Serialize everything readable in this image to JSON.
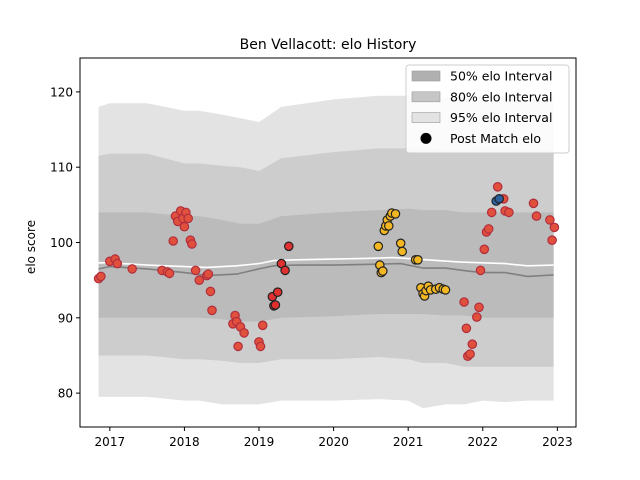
{
  "chart_data": {
    "type": "scatter",
    "title": "Ben Vellacott: elo History",
    "xlabel": "",
    "ylabel": "elo score",
    "xlim": [
      2016.6,
      2023.25
    ],
    "ylim": [
      75.5,
      124.5
    ],
    "x_ticks": [
      2017,
      2018,
      2019,
      2020,
      2021,
      2022,
      2023
    ],
    "y_ticks": [
      80,
      90,
      100,
      110,
      120
    ],
    "grid": false,
    "legend_position": "top-right",
    "legend": [
      {
        "label": "50% elo Interval",
        "kind": "band",
        "color": "#b0b0b0"
      },
      {
        "label": "80% elo Interval",
        "kind": "band",
        "color": "#c6c6c6"
      },
      {
        "label": "95% elo Interval",
        "kind": "band",
        "color": "#e3e3e3"
      },
      {
        "label": "Post Match elo",
        "kind": "marker",
        "color": "#000000"
      }
    ],
    "colors": {
      "band95": "#e3e3e3",
      "band80": "#cdcdcd",
      "band50": "#bbbbbb",
      "median": "#808080",
      "mean": "#ffffff",
      "red_point": "#e0503c",
      "red_edge": "#b02e3e",
      "gold_point": "#f3b724",
      "blue_point": "#2c5fa0"
    },
    "bands": {
      "x": [
        2016.85,
        2017.0,
        2017.5,
        2018.0,
        2018.2,
        2018.5,
        2018.75,
        2019.0,
        2019.3,
        2020.0,
        2020.6,
        2021.0,
        2021.2,
        2021.5,
        2021.75,
        2022.0,
        2022.3,
        2022.6,
        2022.95
      ],
      "p97_5": [
        118.0,
        118.5,
        118.5,
        117.5,
        117.5,
        117.0,
        116.5,
        116.0,
        118.0,
        119.0,
        119.5,
        119.5,
        119.5,
        119.3,
        119.3,
        119.5,
        119.5,
        119.3,
        119.3
      ],
      "p90": [
        111.5,
        111.8,
        111.8,
        110.5,
        110.5,
        110.2,
        110.0,
        109.5,
        111.2,
        112.0,
        112.5,
        112.5,
        112.5,
        112.3,
        112.3,
        112.5,
        112.5,
        112.3,
        112.3
      ],
      "p75": [
        104.0,
        104.0,
        104.0,
        103.5,
        103.5,
        103.0,
        102.5,
        102.5,
        103.5,
        104.0,
        104.3,
        104.5,
        104.3,
        104.3,
        104.0,
        104.0,
        104.0,
        104.0,
        104.0
      ],
      "p25": [
        90.0,
        90.0,
        90.0,
        90.0,
        90.0,
        89.8,
        89.5,
        89.5,
        90.0,
        90.2,
        90.5,
        90.5,
        90.5,
        90.3,
        90.3,
        90.0,
        90.0,
        90.0,
        90.0
      ],
      "p10": [
        85.0,
        85.0,
        85.0,
        84.5,
        84.5,
        84.3,
        84.0,
        84.0,
        84.5,
        84.5,
        84.8,
        84.5,
        84.0,
        84.0,
        83.5,
        83.5,
        83.5,
        83.5,
        83.5
      ],
      "p2_5": [
        79.5,
        79.5,
        79.5,
        79.0,
        79.0,
        78.5,
        78.5,
        78.5,
        79.0,
        79.0,
        79.2,
        79.0,
        78.0,
        78.5,
        78.5,
        79.0,
        78.8,
        79.0,
        79.0
      ]
    },
    "median_line": {
      "x": [
        2016.85,
        2017.0,
        2017.5,
        2018.0,
        2018.3,
        2018.7,
        2019.0,
        2019.2,
        2019.5,
        2020.0,
        2020.5,
        2020.9,
        2021.2,
        2021.5,
        2021.8,
        2022.0,
        2022.3,
        2022.6,
        2022.95
      ],
      "y": [
        96.5,
        96.8,
        96.5,
        96.0,
        95.6,
        95.8,
        96.5,
        96.9,
        97.0,
        97.0,
        97.1,
        97.2,
        96.6,
        96.6,
        96.2,
        96.0,
        96.0,
        95.5,
        95.7
      ]
    },
    "mean_line": {
      "x": [
        2016.85,
        2017.0,
        2017.5,
        2018.0,
        2018.3,
        2018.7,
        2019.0,
        2019.2,
        2019.5,
        2020.0,
        2020.5,
        2020.8,
        2021.1,
        2021.4,
        2021.7,
        2022.0,
        2022.3,
        2022.6,
        2022.95
      ],
      "y": [
        97.3,
        97.3,
        97.0,
        96.8,
        96.7,
        96.9,
        97.2,
        97.6,
        97.7,
        97.8,
        97.9,
        98.0,
        97.8,
        97.6,
        97.4,
        97.3,
        97.2,
        96.9,
        97.0
      ]
    },
    "series": [
      {
        "color": "red",
        "points": [
          [
            2016.85,
            95.2
          ],
          [
            2016.88,
            95.5
          ],
          [
            2017.0,
            97.5
          ],
          [
            2017.07,
            97.8
          ],
          [
            2017.1,
            97.2
          ],
          [
            2017.3,
            96.5
          ],
          [
            2017.7,
            96.3
          ],
          [
            2017.77,
            96.1
          ],
          [
            2017.8,
            95.9
          ],
          [
            2017.85,
            100.2
          ],
          [
            2017.88,
            103.5
          ],
          [
            2017.91,
            102.8
          ],
          [
            2017.95,
            104.2
          ],
          [
            2017.98,
            103.2
          ],
          [
            2018.0,
            102.1
          ],
          [
            2018.02,
            104.0
          ],
          [
            2018.05,
            103.2
          ],
          [
            2018.08,
            100.3
          ],
          [
            2018.1,
            99.8
          ],
          [
            2018.15,
            96.3
          ],
          [
            2018.2,
            95.0
          ],
          [
            2018.3,
            95.6
          ],
          [
            2018.32,
            95.8
          ],
          [
            2018.35,
            93.5
          ],
          [
            2018.37,
            91.0
          ],
          [
            2018.65,
            89.2
          ],
          [
            2018.68,
            90.3
          ],
          [
            2018.7,
            89.5
          ],
          [
            2018.72,
            86.2
          ],
          [
            2018.75,
            88.8
          ],
          [
            2018.8,
            88.0
          ],
          [
            2019.0,
            86.8
          ],
          [
            2019.02,
            86.2
          ],
          [
            2019.05,
            89.0
          ]
        ]
      },
      {
        "color": "red_dark",
        "points": [
          [
            2019.18,
            92.8
          ],
          [
            2019.2,
            91.6
          ],
          [
            2019.22,
            91.7
          ],
          [
            2019.25,
            93.4
          ],
          [
            2019.3,
            97.2
          ],
          [
            2019.35,
            96.3
          ],
          [
            2019.4,
            99.5
          ]
        ]
      },
      {
        "color": "gold",
        "points": [
          [
            2020.6,
            99.5
          ],
          [
            2020.62,
            97.0
          ],
          [
            2020.64,
            96.0
          ],
          [
            2020.66,
            96.2
          ],
          [
            2020.68,
            101.6
          ],
          [
            2020.7,
            102.2
          ],
          [
            2020.72,
            103.0
          ],
          [
            2020.74,
            102.2
          ],
          [
            2020.76,
            103.5
          ],
          [
            2020.78,
            103.9
          ],
          [
            2020.83,
            103.8
          ],
          [
            2020.9,
            99.9
          ],
          [
            2020.92,
            98.8
          ],
          [
            2021.1,
            97.7
          ],
          [
            2021.13,
            97.7
          ],
          [
            2021.17,
            94.0
          ],
          [
            2021.2,
            93.2
          ],
          [
            2021.22,
            92.9
          ],
          [
            2021.24,
            93.6
          ],
          [
            2021.27,
            94.2
          ],
          [
            2021.3,
            93.7
          ],
          [
            2021.37,
            93.8
          ],
          [
            2021.42,
            94.0
          ],
          [
            2021.47,
            93.8
          ],
          [
            2021.5,
            93.7
          ]
        ]
      },
      {
        "color": "red",
        "points": [
          [
            2021.75,
            92.1
          ],
          [
            2021.78,
            88.6
          ],
          [
            2021.8,
            84.9
          ],
          [
            2021.83,
            85.2
          ],
          [
            2021.86,
            86.5
          ],
          [
            2021.92,
            90.1
          ],
          [
            2021.95,
            91.4
          ],
          [
            2021.97,
            96.3
          ],
          [
            2022.02,
            99.1
          ],
          [
            2022.05,
            101.4
          ],
          [
            2022.08,
            101.8
          ],
          [
            2022.12,
            104.0
          ],
          [
            2022.2,
            107.4
          ],
          [
            2022.3,
            104.2
          ],
          [
            2022.35,
            104.0
          ],
          [
            2022.28,
            105.8
          ],
          [
            2022.68,
            105.2
          ],
          [
            2022.72,
            103.5
          ],
          [
            2022.9,
            103.0
          ],
          [
            2022.93,
            100.3
          ],
          [
            2022.96,
            102.0
          ]
        ]
      },
      {
        "color": "blue",
        "points": [
          [
            2022.18,
            105.5
          ],
          [
            2022.22,
            105.8
          ]
        ]
      }
    ]
  }
}
